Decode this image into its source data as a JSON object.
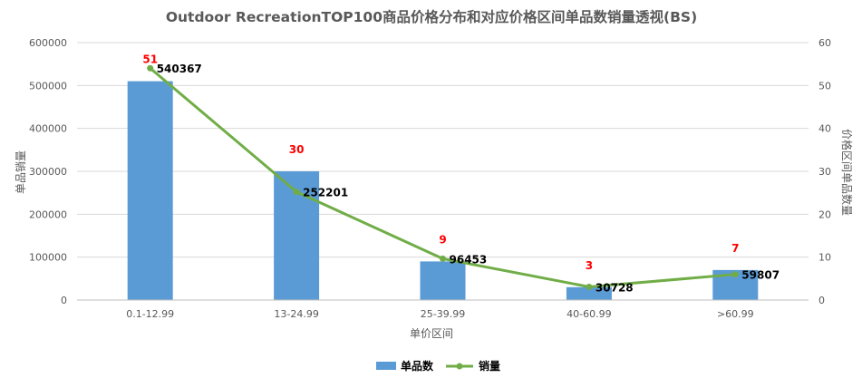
{
  "chart_data": {
    "type": "bar",
    "title": "Outdoor RecreationTOP100商品价格分布和对应价格区间单品数销量透视(BS)",
    "xlabel": "单价区间",
    "ylabel": "单品销量",
    "y2label": "价格区间单品数量",
    "categories": [
      "0.1-12.99",
      "13-24.99",
      "25-39.99",
      "40-60.99",
      ">60.99"
    ],
    "ylim": [
      0,
      600000
    ],
    "y_ticks": [
      0,
      100000,
      200000,
      300000,
      400000,
      500000,
      600000
    ],
    "y2lim": [
      0,
      60
    ],
    "y2_ticks": [
      0,
      10,
      20,
      30,
      40,
      50,
      60
    ],
    "grid": true,
    "legend_position": "bottom",
    "series": [
      {
        "name": "单品数",
        "type": "bar",
        "axis": "right",
        "color": "#5b9bd5",
        "values": [
          51,
          30,
          9,
          3,
          7
        ],
        "labels": [
          "51",
          "30",
          "9",
          "3",
          "7"
        ],
        "label_color": "#ff0000"
      },
      {
        "name": "销量",
        "type": "line",
        "axis": "left",
        "color": "#70ad47",
        "values": [
          540367,
          252201,
          96453,
          30728,
          59807
        ],
        "labels": [
          "540367",
          "252201",
          "96453",
          "30728",
          "59807"
        ],
        "label_color": "#000000"
      }
    ]
  }
}
